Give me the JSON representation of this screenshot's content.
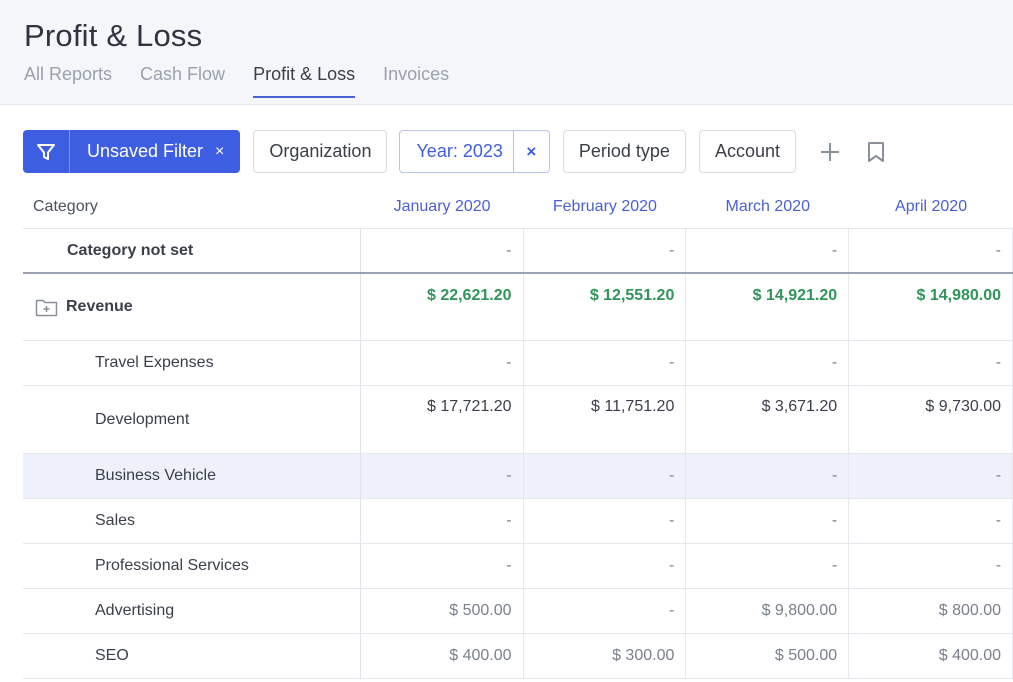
{
  "page": {
    "title": "Profit & Loss"
  },
  "tabs": [
    {
      "label": "All Reports"
    },
    {
      "label": "Cash Flow"
    },
    {
      "label": "Profit & Loss",
      "active": true
    },
    {
      "label": "Invoices"
    }
  ],
  "toolbar": {
    "filter_label": "Unsaved Filter",
    "filter_clear": "×",
    "organization": "Organization",
    "year": "Year: 2023",
    "year_clear": "×",
    "period_type": "Period type",
    "account": "Account"
  },
  "colors": {
    "accent": "#3d5ee0",
    "positive": "#2f9558",
    "highlight_row": "#eef0fb"
  },
  "table": {
    "headers": [
      "Category",
      "January 2020",
      "February 2020",
      "March 2020",
      "April 2020"
    ],
    "rows": [
      {
        "category": "Category not set",
        "values": [
          "-",
          "-",
          "-",
          "-"
        ]
      },
      {
        "category": "Revenue",
        "icon": "folder-plus-icon",
        "values": [
          "$ 22,621.20",
          "$ 12,551.20",
          "$ 14,921.20",
          "$ 14,980.00"
        ]
      },
      {
        "category": "Travel Expenses",
        "values": [
          "-",
          "-",
          "-",
          "-"
        ]
      },
      {
        "category": "Development",
        "values": [
          "$ 17,721.20",
          "$ 11,751.20",
          "$ 3,671.20",
          "$ 9,730.00"
        ]
      },
      {
        "category": "Business Vehicle",
        "values": [
          "-",
          "-",
          "-",
          "-"
        ]
      },
      {
        "category": "Sales",
        "values": [
          "-",
          "-",
          "-",
          "-"
        ]
      },
      {
        "category": "Professional Services",
        "values": [
          "-",
          "-",
          "-",
          "-"
        ]
      },
      {
        "category": "Advertising",
        "values": [
          "$ 500.00",
          "-",
          "$ 9,800.00",
          "$ 800.00"
        ]
      },
      {
        "category": "SEO",
        "values": [
          "$ 400.00",
          "$ 300.00",
          "$ 500.00",
          "$ 400.00"
        ]
      }
    ]
  }
}
